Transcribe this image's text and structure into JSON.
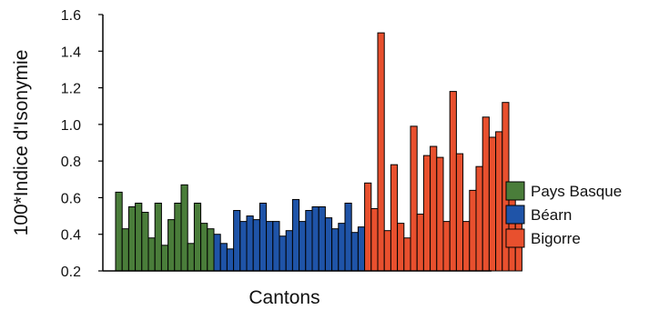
{
  "chart_data": {
    "type": "bar",
    "title": "",
    "xlabel": "Cantons",
    "ylabel": "100*Indice d'Isonymie",
    "ylim": [
      0.2,
      1.6
    ],
    "yticks": [
      0.2,
      0.4,
      0.6,
      0.8,
      1.0,
      1.2,
      1.4,
      1.6
    ],
    "ytick_labels": [
      "0.2",
      "0.4",
      "0.6",
      "0.8",
      "1.0",
      "1.2",
      "1.4",
      "1.6"
    ],
    "grid": false,
    "legend_position": "right",
    "series": [
      {
        "name": "Pays Basque",
        "color": "#4a7d3a",
        "values": [
          0.63,
          0.43,
          0.55,
          0.57,
          0.52,
          0.38,
          0.57,
          0.34,
          0.48,
          0.57,
          0.67,
          0.35,
          0.57,
          0.46,
          0.43
        ]
      },
      {
        "name": "Béarn",
        "color": "#1f54a8",
        "values": [
          0.4,
          0.35,
          0.32,
          0.53,
          0.47,
          0.5,
          0.48,
          0.57,
          0.47,
          0.47,
          0.39,
          0.42,
          0.59,
          0.47,
          0.53,
          0.55,
          0.55,
          0.49,
          0.43,
          0.46,
          0.57,
          0.41,
          0.44
        ]
      },
      {
        "name": "Bigorre",
        "color": "#e8502e",
        "values": [
          0.68,
          0.54,
          1.5,
          0.42,
          0.78,
          0.46,
          0.38,
          0.99,
          0.51,
          0.83,
          0.88,
          0.82,
          0.47,
          1.18,
          0.84,
          0.47,
          0.64,
          0.77,
          1.04,
          0.93,
          0.96,
          1.12,
          0.6,
          0.53
        ]
      }
    ]
  }
}
